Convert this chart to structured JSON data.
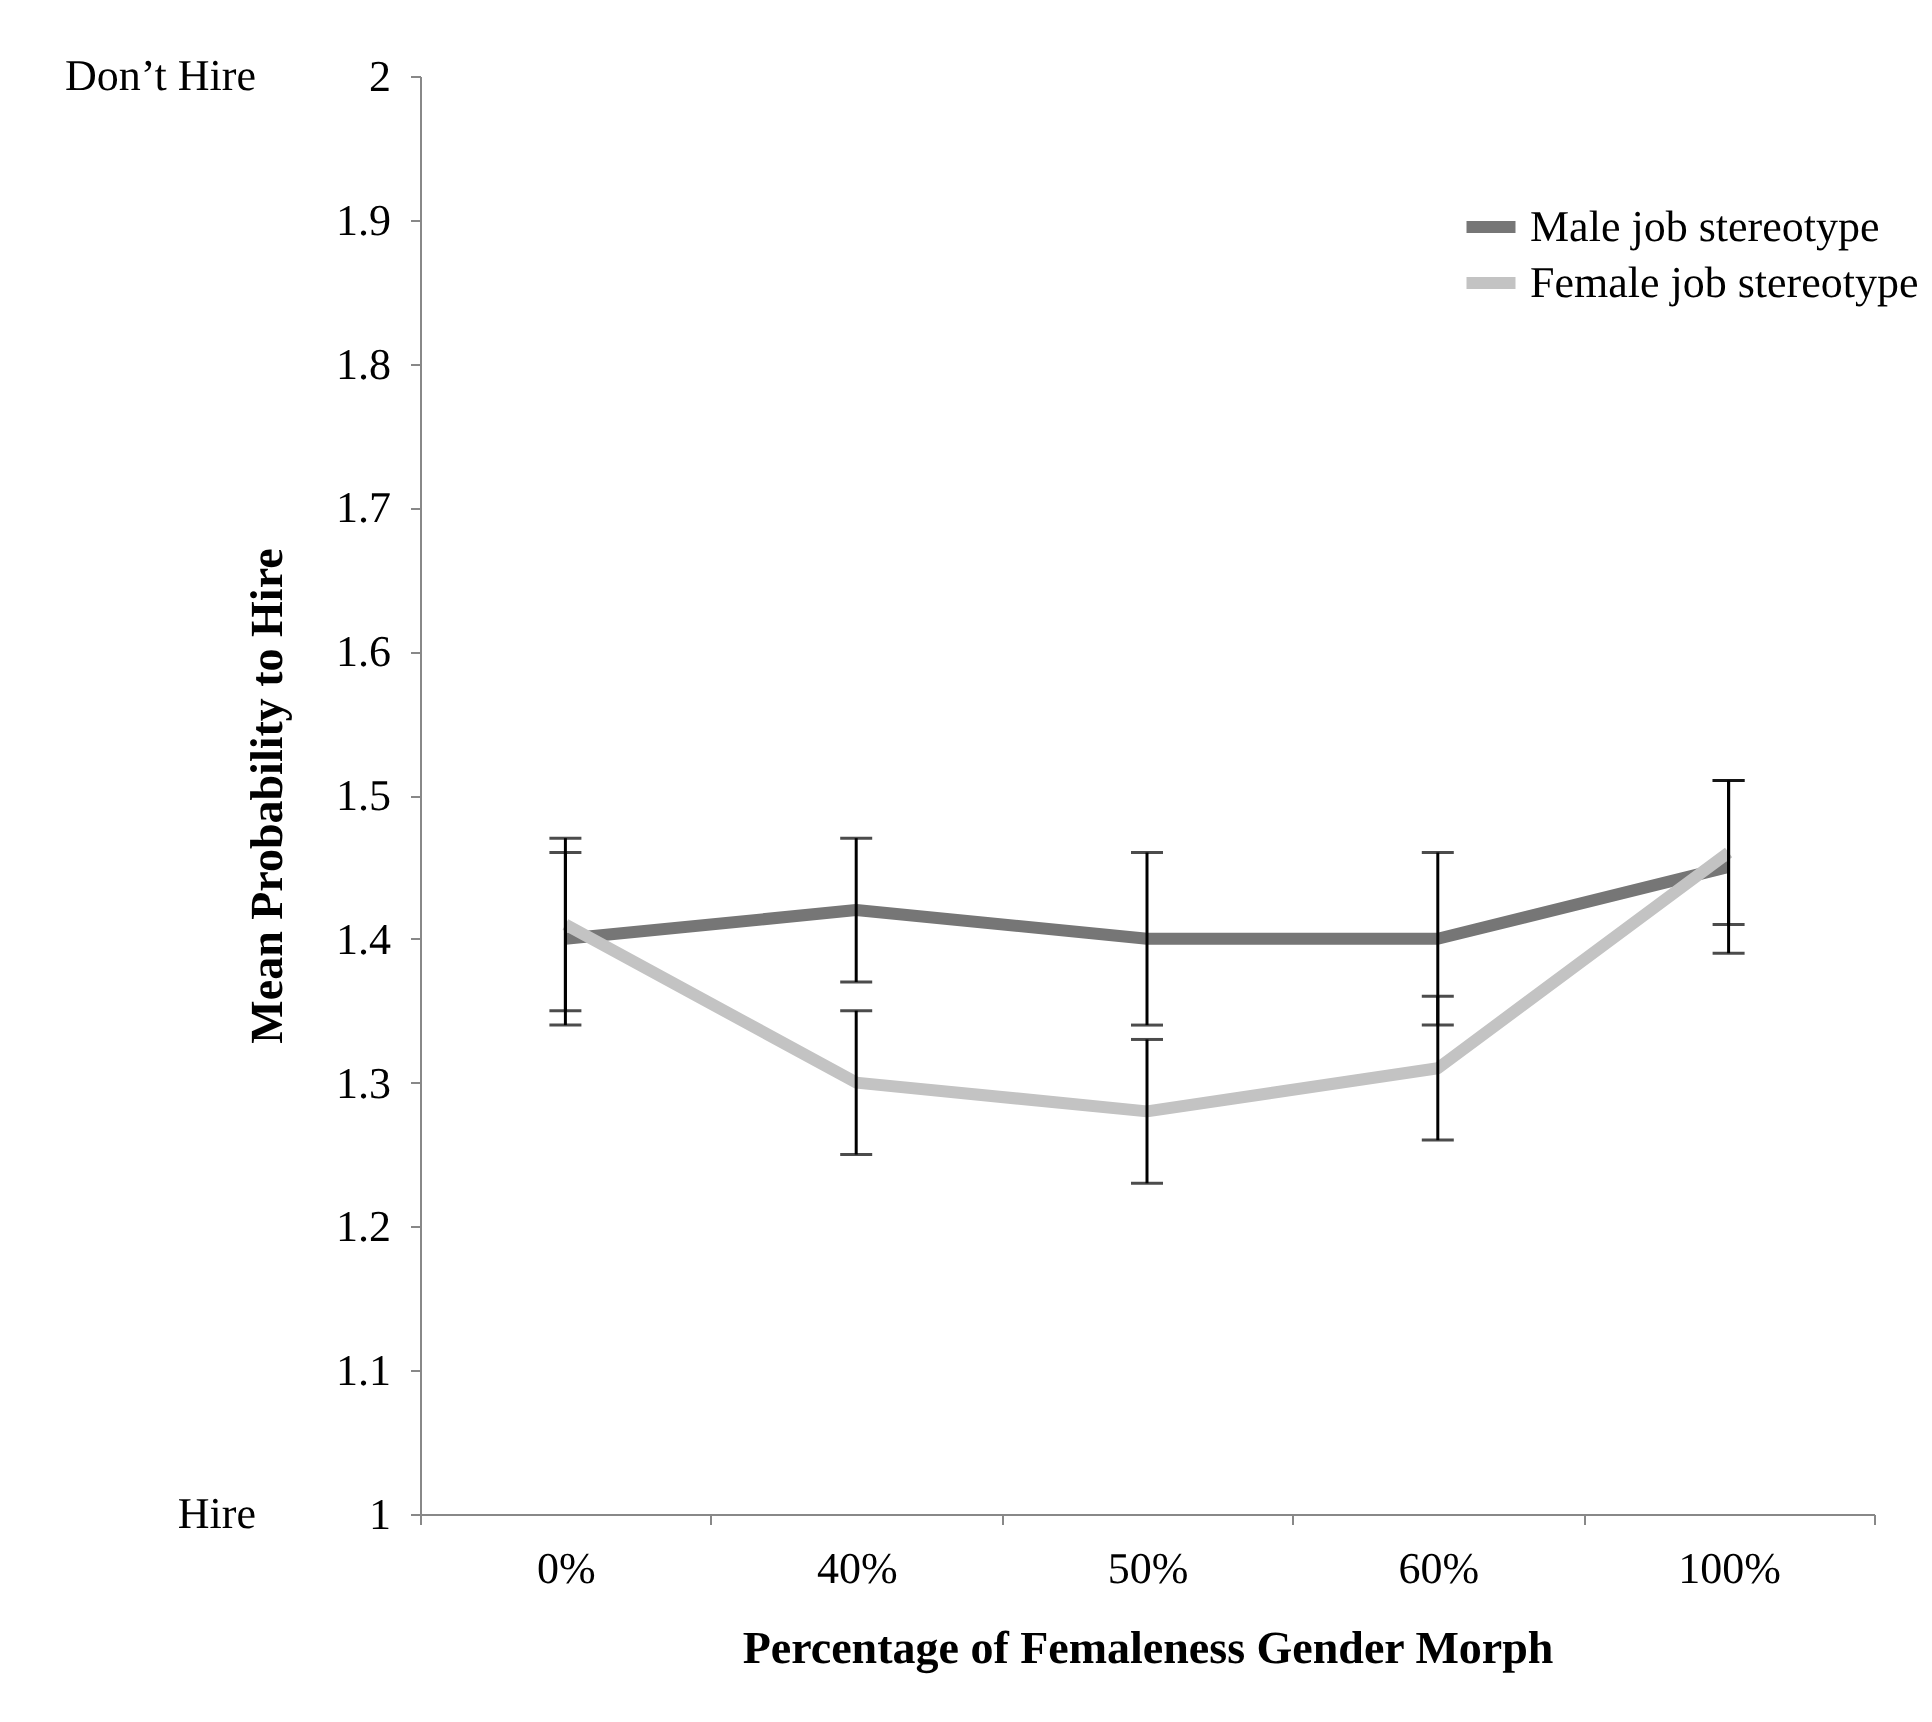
{
  "chart_data": {
    "type": "line",
    "xlabel": "Percentage of Femaleness Gender Morph",
    "ylabel": "Mean Probability to Hire",
    "categories": [
      "0%",
      "40%",
      "50%",
      "60%",
      "100%"
    ],
    "series": [
      {
        "name": "Male job stereotype",
        "color": "#767676",
        "values": [
          1.4,
          1.42,
          1.4,
          1.4,
          1.45
        ],
        "errors": [
          0.06,
          0.05,
          0.06,
          0.06,
          0.06
        ]
      },
      {
        "name": "Female job stereotype",
        "color": "#c3c3c3",
        "values": [
          1.41,
          1.3,
          1.28,
          1.31,
          1.46
        ],
        "errors": [
          0.06,
          0.05,
          0.05,
          0.05,
          0.05
        ]
      }
    ],
    "ylim": [
      1,
      2
    ],
    "yticks": [
      1,
      1.1,
      1.2,
      1.3,
      1.4,
      1.5,
      1.6,
      1.7,
      1.8,
      1.9,
      2
    ],
    "annotations": [
      "Don’t Hire",
      "Hire"
    ],
    "legend": "top right",
    "grid": false,
    "marker": "none",
    "line_style": "solid"
  }
}
